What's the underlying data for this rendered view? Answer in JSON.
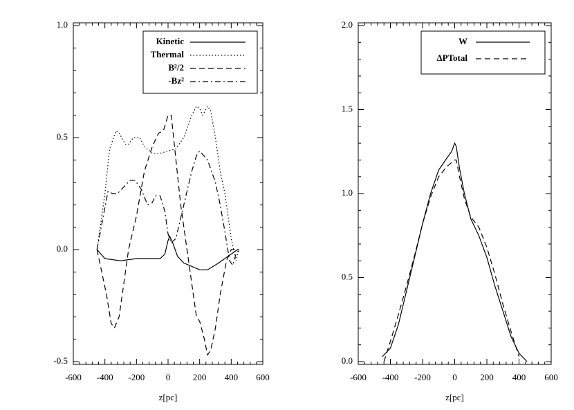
{
  "chart_data": [
    {
      "type": "line",
      "xlabel": "z[pc]",
      "xlim": [
        -600,
        600
      ],
      "xticks": [
        -600,
        -400,
        -200,
        0,
        200,
        400,
        600
      ],
      "ylim": [
        -0.5,
        1.0
      ],
      "yticks": [
        -0.5,
        {
          "value": 0,
          "label": "0.0"
        },
        0.5,
        {
          "value": 1,
          "label": "1.0"
        }
      ],
      "series": [
        {
          "name": "Kinetic",
          "color": "#000000",
          "linestyle": "solid",
          "x": [
            -450,
            -400,
            -300,
            -200,
            -100,
            -50,
            -20,
            0,
            10,
            30,
            60,
            100,
            200,
            250,
            320,
            400,
            440,
            450
          ],
          "values": [
            0.0,
            -0.04,
            -0.05,
            -0.04,
            -0.04,
            -0.04,
            -0.02,
            0.04,
            0.06,
            0.03,
            -0.03,
            -0.06,
            -0.09,
            -0.09,
            -0.06,
            -0.02,
            0.0,
            0.0
          ]
        },
        {
          "name": "Thermal",
          "color": "#000000",
          "linestyle": "dotted",
          "x": [
            -450,
            -400,
            -370,
            -330,
            -310,
            -270,
            -250,
            -220,
            -180,
            -150,
            -100,
            -50,
            0,
            50,
            100,
            150,
            180,
            200,
            220,
            250,
            270,
            300,
            330,
            360,
            400,
            430,
            450
          ],
          "values": [
            0.0,
            0.25,
            0.45,
            0.53,
            0.52,
            0.47,
            0.47,
            0.5,
            0.5,
            0.46,
            0.43,
            0.43,
            0.44,
            0.45,
            0.5,
            0.6,
            0.64,
            0.63,
            0.6,
            0.64,
            0.62,
            0.5,
            0.35,
            0.25,
            0.05,
            -0.05,
            0.0
          ]
        },
        {
          "name": "B²/2",
          "color": "#000000",
          "linestyle": "dashed",
          "x": [
            -450,
            -420,
            -390,
            -360,
            -340,
            -310,
            -280,
            -250,
            -200,
            -150,
            -100,
            -60,
            -30,
            0,
            20,
            50,
            80,
            120,
            160,
            180,
            200,
            230,
            250,
            270,
            300,
            330,
            370,
            400,
            430,
            450
          ],
          "values": [
            0.0,
            -0.1,
            -0.2,
            -0.33,
            -0.35,
            -0.3,
            -0.15,
            0.0,
            0.15,
            0.35,
            0.46,
            0.52,
            0.53,
            0.6,
            0.6,
            0.4,
            0.2,
            0.0,
            -0.2,
            -0.3,
            -0.32,
            -0.4,
            -0.47,
            -0.45,
            -0.35,
            -0.2,
            -0.05,
            0.0,
            0.0,
            0.0
          ]
        },
        {
          "name": "-Bz²",
          "color": "#000000",
          "linestyle": "dashdot",
          "x": [
            -450,
            -410,
            -380,
            -350,
            -320,
            -280,
            -240,
            -210,
            -170,
            -130,
            -100,
            -80,
            -50,
            -20,
            0,
            20,
            50,
            100,
            150,
            180,
            200,
            250,
            300,
            330,
            360,
            390,
            410,
            430,
            450
          ],
          "values": [
            0.0,
            0.15,
            0.26,
            0.25,
            0.25,
            0.28,
            0.31,
            0.31,
            0.27,
            0.2,
            0.21,
            0.24,
            0.24,
            0.17,
            0.07,
            0.03,
            0.05,
            0.2,
            0.35,
            0.42,
            0.44,
            0.4,
            0.3,
            0.2,
            0.08,
            -0.05,
            -0.07,
            -0.02,
            0.0
          ]
        }
      ]
    },
    {
      "type": "line",
      "xlabel": "z[pc]",
      "xlim": [
        -600,
        600
      ],
      "xticks": [
        -600,
        -400,
        -200,
        0,
        200,
        400,
        600
      ],
      "ylim": [
        0,
        2
      ],
      "yticks": [
        {
          "value": 0,
          "label": "0.0"
        },
        0.5,
        {
          "value": 1,
          "label": "1.0"
        },
        1.5,
        {
          "value": 2,
          "label": "2.0"
        }
      ],
      "series": [
        {
          "name": "W",
          "color": "#000000",
          "linestyle": "solid",
          "x": [
            -450,
            -400,
            -350,
            -300,
            -250,
            -200,
            -150,
            -100,
            -50,
            -20,
            0,
            10,
            30,
            60,
            100,
            150,
            200,
            250,
            300,
            350,
            400,
            450
          ],
          "values": [
            0.03,
            0.08,
            0.22,
            0.42,
            0.62,
            0.82,
            1.0,
            1.14,
            1.21,
            1.25,
            1.3,
            1.28,
            1.15,
            1.0,
            0.85,
            0.75,
            0.62,
            0.45,
            0.3,
            0.15,
            0.05,
            0.0
          ]
        },
        {
          "name": "ΔPTotal",
          "color": "#000000",
          "linestyle": "dashed",
          "x": [
            -440,
            -400,
            -350,
            -300,
            -250,
            -200,
            -150,
            -100,
            -50,
            0,
            10,
            30,
            60,
            100,
            150,
            200,
            250,
            300,
            350,
            400
          ],
          "values": [
            0.0,
            0.12,
            0.28,
            0.45,
            0.63,
            0.82,
            0.98,
            1.1,
            1.16,
            1.2,
            1.2,
            1.1,
            0.97,
            0.86,
            0.8,
            0.68,
            0.52,
            0.34,
            0.18,
            0.03
          ]
        }
      ]
    }
  ]
}
